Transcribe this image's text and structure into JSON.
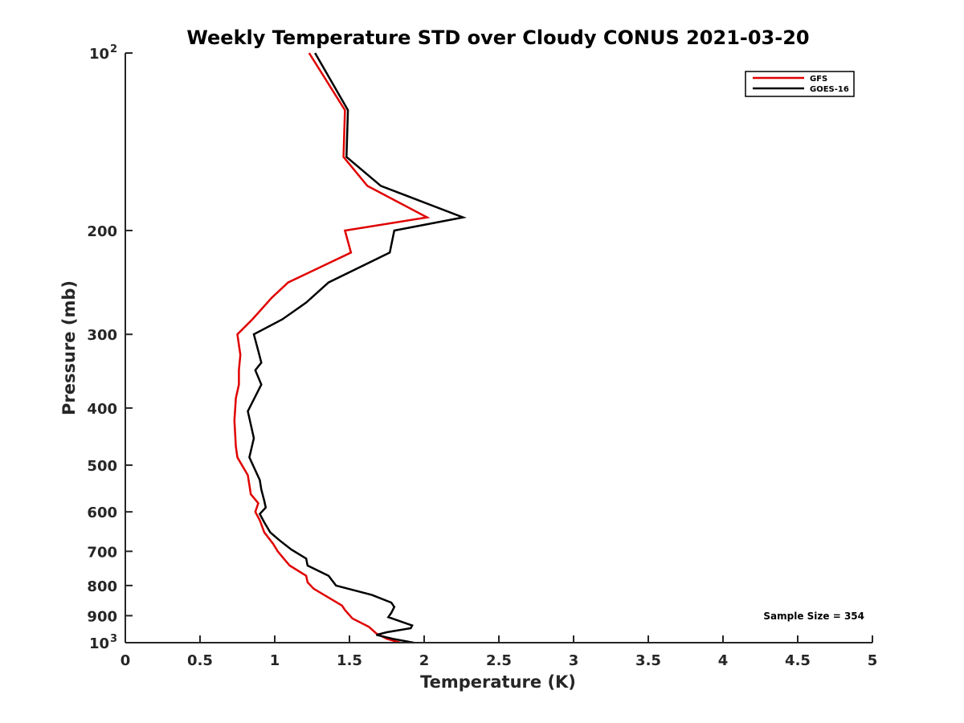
{
  "chart_data": {
    "type": "line",
    "title": "Weekly Temperature STD over Cloudy CONUS 2021-03-20",
    "xlabel": "Temperature (K)",
    "ylabel": "Pressure (mb)",
    "xlim": [
      0,
      5
    ],
    "ylim": [
      100,
      1000
    ],
    "yscale": "log",
    "yreversed": true,
    "xticks": [
      0,
      0.5,
      1,
      1.5,
      2,
      2.5,
      3,
      3.5,
      4,
      4.5,
      5
    ],
    "xtick_labels": [
      "0",
      "0.5",
      "1",
      "1.5",
      "2",
      "2.5",
      "3",
      "3.5",
      "4",
      "4.5",
      "5"
    ],
    "yticks": [
      {
        "value": 100,
        "label": "10",
        "exp": "2"
      },
      {
        "value": 200,
        "label": "200",
        "exp": ""
      },
      {
        "value": 300,
        "label": "300",
        "exp": ""
      },
      {
        "value": 400,
        "label": "400",
        "exp": ""
      },
      {
        "value": 500,
        "label": "500",
        "exp": ""
      },
      {
        "value": 600,
        "label": "600",
        "exp": ""
      },
      {
        "value": 700,
        "label": "700",
        "exp": ""
      },
      {
        "value": 800,
        "label": "800",
        "exp": ""
      },
      {
        "value": 900,
        "label": "900",
        "exp": ""
      },
      {
        "value": 1000,
        "label": "10",
        "exp": "3"
      }
    ],
    "grid": false,
    "legend_position": "top-right",
    "annotation": "Sample Size = 354",
    "series": [
      {
        "name": "GFS",
        "color": "#e00000",
        "points": [
          [
            1.23,
            100
          ],
          [
            1.47,
            125
          ],
          [
            1.46,
            150
          ],
          [
            1.62,
            168
          ],
          [
            2.02,
            190
          ],
          [
            1.47,
            200
          ],
          [
            1.51,
            218
          ],
          [
            1.09,
            245
          ],
          [
            0.98,
            260
          ],
          [
            0.85,
            283
          ],
          [
            0.75,
            300
          ],
          [
            0.77,
            325
          ],
          [
            0.76,
            345
          ],
          [
            0.76,
            365
          ],
          [
            0.74,
            385
          ],
          [
            0.73,
            420
          ],
          [
            0.74,
            465
          ],
          [
            0.75,
            485
          ],
          [
            0.82,
            520
          ],
          [
            0.83,
            540
          ],
          [
            0.84,
            560
          ],
          [
            0.89,
            580
          ],
          [
            0.87,
            600
          ],
          [
            0.9,
            620
          ],
          [
            0.93,
            650
          ],
          [
            0.99,
            680
          ],
          [
            1.02,
            700
          ],
          [
            1.06,
            720
          ],
          [
            1.1,
            740
          ],
          [
            1.21,
            770
          ],
          [
            1.22,
            790
          ],
          [
            1.26,
            810
          ],
          [
            1.45,
            865
          ],
          [
            1.47,
            880
          ],
          [
            1.52,
            910
          ],
          [
            1.63,
            940
          ],
          [
            1.68,
            965
          ],
          [
            1.75,
            985
          ],
          [
            1.84,
            1000
          ]
        ]
      },
      {
        "name": "GOES-16",
        "color": "#000000",
        "points": [
          [
            1.27,
            100
          ],
          [
            1.49,
            125
          ],
          [
            1.48,
            150
          ],
          [
            1.71,
            168
          ],
          [
            2.26,
            190
          ],
          [
            1.8,
            200
          ],
          [
            1.77,
            218
          ],
          [
            1.36,
            245
          ],
          [
            1.21,
            265
          ],
          [
            1.05,
            283
          ],
          [
            0.86,
            300
          ],
          [
            0.89,
            320
          ],
          [
            0.91,
            335
          ],
          [
            0.87,
            345
          ],
          [
            0.91,
            365
          ],
          [
            0.82,
            405
          ],
          [
            0.86,
            450
          ],
          [
            0.83,
            485
          ],
          [
            0.9,
            530
          ],
          [
            0.91,
            550
          ],
          [
            0.93,
            575
          ],
          [
            0.94,
            590
          ],
          [
            0.9,
            605
          ],
          [
            0.93,
            625
          ],
          [
            0.97,
            650
          ],
          [
            1.03,
            670
          ],
          [
            1.11,
            695
          ],
          [
            1.21,
            720
          ],
          [
            1.22,
            740
          ],
          [
            1.36,
            770
          ],
          [
            1.41,
            800
          ],
          [
            1.65,
            830
          ],
          [
            1.78,
            855
          ],
          [
            1.8,
            870
          ],
          [
            1.78,
            890
          ],
          [
            1.76,
            905
          ],
          [
            1.92,
            935
          ],
          [
            1.91,
            945
          ],
          [
            1.75,
            960
          ],
          [
            1.68,
            970
          ],
          [
            1.79,
            985
          ],
          [
            1.93,
            1000
          ]
        ]
      }
    ]
  }
}
